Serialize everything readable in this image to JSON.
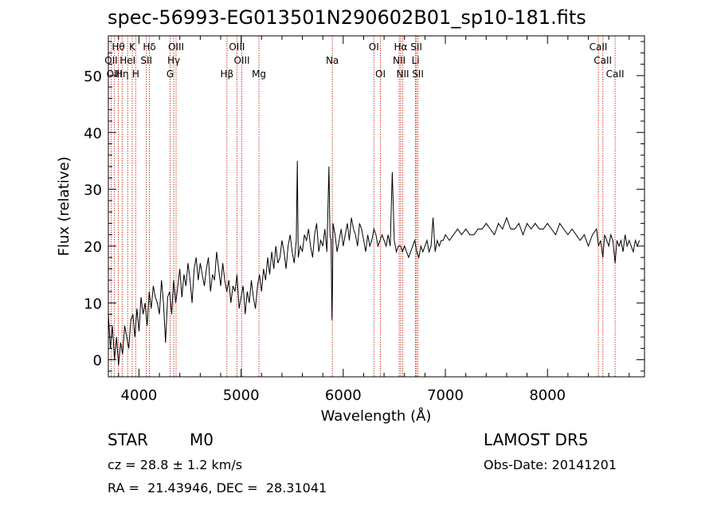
{
  "chart_data": {
    "type": "line",
    "title": "spec-56993-EG013501N290602B01_sp10-181.fits",
    "xlabel": "Wavelength (Å)",
    "ylabel": "Flux (relative)",
    "xlim": [
      3700,
      8950
    ],
    "ylim": [
      -3,
      57
    ],
    "x_ticks": [
      "4000",
      "5000",
      "6000",
      "7000",
      "8000"
    ],
    "y_ticks": [
      "0",
      "10",
      "20",
      "30",
      "40",
      "50"
    ],
    "grid": false,
    "series": [
      {
        "x": [
          3700,
          3720,
          3740,
          3760,
          3780,
          3800,
          3820,
          3840,
          3860,
          3880,
          3900,
          3920,
          3940,
          3960,
          3980,
          4000,
          4020,
          4040,
          4060,
          4080,
          4100,
          4120,
          4140,
          4160,
          4180,
          4200,
          4220,
          4240,
          4260,
          4280,
          4300,
          4320,
          4340,
          4360,
          4380,
          4400,
          4420,
          4440,
          4460,
          4480,
          4500,
          4520,
          4540,
          4560,
          4580,
          4600,
          4620,
          4640,
          4660,
          4680,
          4700,
          4720,
          4740,
          4760,
          4780,
          4800,
          4820,
          4840,
          4860,
          4880,
          4900,
          4920,
          4940,
          4960,
          4980,
          5000,
          5020,
          5040,
          5060,
          5080,
          5100,
          5120,
          5140,
          5160,
          5180,
          5200,
          5220,
          5240,
          5260,
          5280,
          5300,
          5320,
          5340,
          5360,
          5380,
          5400,
          5420,
          5440,
          5460,
          5480,
          5500,
          5520,
          5540,
          5550,
          5560,
          5580,
          5600,
          5620,
          5640,
          5660,
          5680,
          5700,
          5720,
          5740,
          5760,
          5780,
          5800,
          5820,
          5840,
          5860,
          5870,
          5880,
          5890,
          5895,
          5900,
          5920,
          5940,
          5960,
          5980,
          6000,
          6020,
          6040,
          6060,
          6080,
          6100,
          6120,
          6140,
          6160,
          6180,
          6200,
          6220,
          6240,
          6260,
          6280,
          6300,
          6320,
          6340,
          6360,
          6380,
          6400,
          6420,
          6440,
          6460,
          6480,
          6500,
          6520,
          6540,
          6563,
          6580,
          6600,
          6620,
          6640,
          6660,
          6680,
          6700,
          6720,
          6740,
          6760,
          6780,
          6800,
          6820,
          6840,
          6860,
          6880,
          6900,
          6920,
          6940,
          6960,
          6980,
          7000,
          7040,
          7080,
          7120,
          7160,
          7200,
          7240,
          7280,
          7320,
          7360,
          7400,
          7440,
          7480,
          7520,
          7560,
          7600,
          7620,
          7640,
          7680,
          7720,
          7760,
          7800,
          7840,
          7880,
          7920,
          7960,
          8000,
          8040,
          8080,
          8120,
          8160,
          8200,
          8240,
          8280,
          8320,
          8360,
          8400,
          8440,
          8480,
          8500,
          8520,
          8542,
          8560,
          8580,
          8600,
          8620,
          8640,
          8662,
          8680,
          8700,
          8720,
          8740,
          8760,
          8780,
          8800,
          8820,
          8840,
          8860,
          8880,
          8900
        ],
        "y": [
          8,
          2,
          6,
          0,
          4,
          -1,
          3,
          1,
          6,
          4,
          2,
          7,
          8,
          4,
          9,
          5,
          11,
          8,
          10,
          6,
          12,
          9,
          13,
          11,
          10,
          8,
          14,
          10,
          3,
          11,
          12,
          8,
          14,
          10,
          13,
          16,
          11,
          15,
          13,
          17,
          14,
          10,
          16,
          18,
          14,
          17,
          15,
          13,
          16,
          18,
          12,
          15,
          14,
          19,
          16,
          13,
          17,
          14,
          12,
          14,
          10,
          13,
          12,
          15,
          9,
          11,
          13,
          8,
          12,
          10,
          14,
          11,
          9,
          13,
          15,
          12,
          16,
          14,
          18,
          15,
          19,
          16,
          20,
          17,
          18,
          21,
          19,
          16,
          20,
          22,
          19,
          17,
          21,
          35,
          18,
          20,
          19,
          22,
          21,
          23,
          20,
          18,
          22,
          24,
          19,
          21,
          20,
          23,
          19,
          34,
          22,
          21,
          7,
          13,
          24,
          22,
          19,
          21,
          23,
          20,
          22,
          24,
          21,
          25,
          23,
          22,
          20,
          24,
          23,
          21,
          19,
          22,
          20,
          21,
          23,
          22,
          20,
          21,
          22,
          21,
          20,
          22,
          20,
          33,
          21,
          19,
          20,
          20,
          19,
          20,
          19,
          18,
          19,
          20,
          21,
          19,
          18,
          20,
          19,
          20,
          21,
          19,
          20,
          25,
          19,
          21,
          20,
          21,
          21,
          22,
          21,
          22,
          23,
          22,
          23,
          22,
          22,
          23,
          23,
          24,
          23,
          22,
          24,
          23,
          25,
          24,
          23,
          23,
          24,
          22,
          24,
          23,
          24,
          23,
          23,
          24,
          23,
          22,
          24,
          23,
          22,
          23,
          22,
          21,
          22,
          20,
          22,
          23,
          20,
          21,
          18,
          22,
          21,
          20,
          22,
          21,
          17,
          21,
          20,
          21,
          19,
          22,
          20,
          21,
          20,
          19,
          21,
          20,
          21
        ]
      }
    ],
    "line_labels": [
      {
        "text": "Hθ",
        "x": 3798,
        "row": 1
      },
      {
        "text": "K",
        "x": 3934,
        "row": 1
      },
      {
        "text": "Hδ",
        "x": 4102,
        "row": 1
      },
      {
        "text": "OIII",
        "x": 4363,
        "row": 1
      },
      {
        "text": "OIII",
        "x": 4959,
        "row": 1
      },
      {
        "text": "OI",
        "x": 6300,
        "row": 1
      },
      {
        "text": "Hα",
        "x": 6563,
        "row": 1
      },
      {
        "text": "SII",
        "x": 6716,
        "row": 1
      },
      {
        "text": "CaII",
        "x": 8498,
        "row": 1
      },
      {
        "text": "OII",
        "x": 3727,
        "row": 2
      },
      {
        "text": "HeI",
        "x": 3889,
        "row": 2
      },
      {
        "text": "SII",
        "x": 4072,
        "row": 2
      },
      {
        "text": "Hγ",
        "x": 4340,
        "row": 2
      },
      {
        "text": "OIII",
        "x": 5007,
        "row": 2
      },
      {
        "text": "Na",
        "x": 5893,
        "row": 2
      },
      {
        "text": "NII",
        "x": 6548,
        "row": 2
      },
      {
        "text": "Li",
        "x": 6708,
        "row": 2
      },
      {
        "text": "CaII",
        "x": 8542,
        "row": 2
      },
      {
        "text": "OIII",
        "x": 3760,
        "row": 3
      },
      {
        "text": "Hη",
        "x": 3835,
        "row": 3
      },
      {
        "text": "H",
        "x": 3968,
        "row": 3
      },
      {
        "text": "G",
        "x": 4305,
        "row": 3
      },
      {
        "text": "Hβ",
        "x": 4861,
        "row": 3
      },
      {
        "text": "Mg",
        "x": 5175,
        "row": 3
      },
      {
        "text": "OI",
        "x": 6364,
        "row": 3
      },
      {
        "text": "NII",
        "x": 6583,
        "row": 3
      },
      {
        "text": "SII",
        "x": 6731,
        "row": 3
      },
      {
        "text": "CaII",
        "x": 8662,
        "row": 3
      }
    ],
    "line_color": "#c83c28"
  },
  "info": {
    "class_label": "STAR",
    "subclass": "M0",
    "survey": "LAMOST DR5",
    "cz": "cz = 28.8 ± 1.2 km/s",
    "obs_date": "Obs-Date: 20141201",
    "radec": "RA =  21.43946, DEC =  28.31041"
  }
}
